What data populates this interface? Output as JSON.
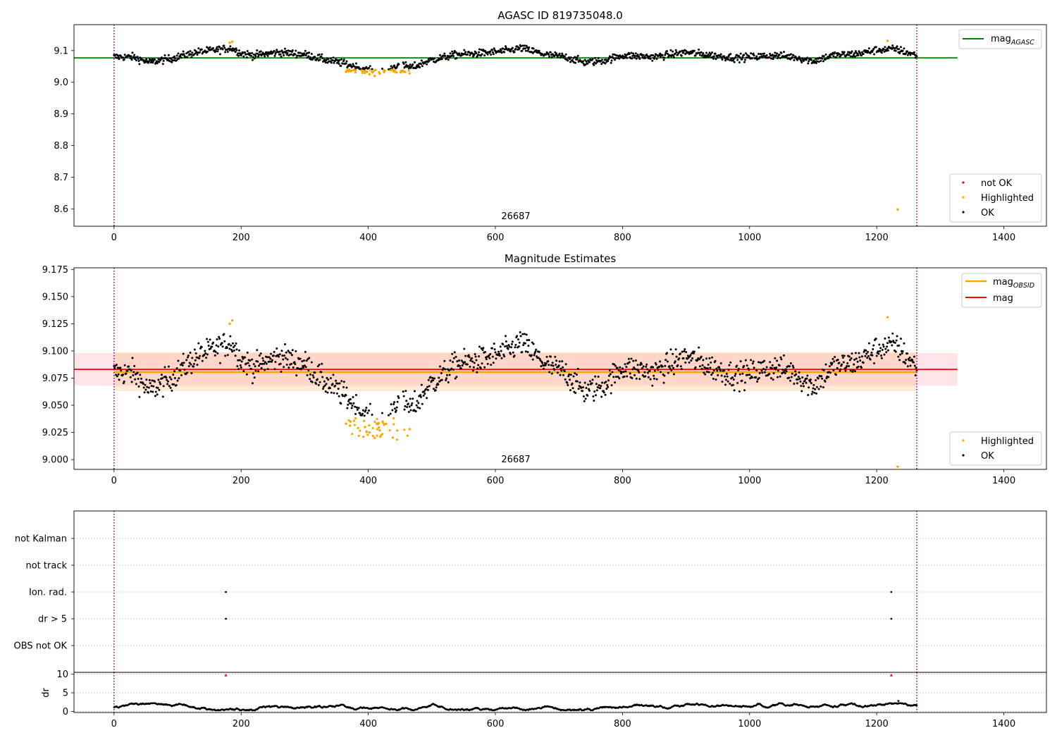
{
  "chart_data": [
    {
      "type": "scatter",
      "title": "AGASC ID 819735048.0",
      "xlim": [
        -63,
        1467
      ],
      "ylim": [
        8.545,
        9.182
      ],
      "xticks": [
        0,
        200,
        400,
        600,
        800,
        1000,
        1200,
        1400
      ],
      "yticks": [
        8.6,
        8.7,
        8.8,
        8.9,
        9.0,
        9.1
      ],
      "vlines": [
        0,
        1263
      ],
      "annotation": {
        "text": "26687",
        "x": 631,
        "y": 8.57
      },
      "lines": [
        {
          "name": "mag_AGASC",
          "legend_text": "mag",
          "legend_sub": "AGASC",
          "y": 9.077,
          "x": [
            -63,
            1327
          ],
          "color": "#008000"
        }
      ],
      "legend_top": [
        "mag_AGASC"
      ],
      "legend_bottom": [
        {
          "label": "not OK",
          "color": "#ff0000"
        },
        {
          "label": "Highlighted",
          "color": "#ffa500"
        },
        {
          "label": "OK",
          "color": "#000000"
        }
      ],
      "series": [
        {
          "name": "OK",
          "color": "#000000",
          "note": "about 1260 per-frame estimates following the baseline curve below"
        },
        {
          "name": "Highlighted",
          "color": "#ffa500",
          "points": [
            [
              182,
              9.125
            ],
            [
              186,
              9.128
            ],
            [
              365,
              9.033
            ],
            [
              372,
              9.035
            ],
            [
              380,
              9.038
            ],
            [
              395,
              9.03
            ],
            [
              402,
              9.025
            ],
            [
              410,
              9.02
            ],
            [
              418,
              9.027
            ],
            [
              425,
              9.032
            ],
            [
              440,
              9.038
            ],
            [
              465,
              9.028
            ],
            [
              1217,
              9.131
            ],
            [
              1233,
              8.598
            ]
          ]
        },
        {
          "name": "not OK",
          "color": "#ff0000",
          "points": []
        }
      ],
      "baseline": [
        [
          0,
          9.08
        ],
        [
          30,
          9.08
        ],
        [
          55,
          9.063
        ],
        [
          90,
          9.075
        ],
        [
          130,
          9.095
        ],
        [
          160,
          9.102
        ],
        [
          185,
          9.108
        ],
        [
          200,
          9.092
        ],
        [
          220,
          9.085
        ],
        [
          260,
          9.095
        ],
        [
          300,
          9.088
        ],
        [
          330,
          9.072
        ],
        [
          365,
          9.058
        ],
        [
          395,
          9.04
        ],
        [
          415,
          9.03
        ],
        [
          430,
          9.035
        ],
        [
          445,
          9.055
        ],
        [
          470,
          9.047
        ],
        [
          495,
          9.068
        ],
        [
          540,
          9.088
        ],
        [
          580,
          9.092
        ],
        [
          620,
          9.1
        ],
        [
          640,
          9.108
        ],
        [
          680,
          9.087
        ],
        [
          710,
          9.08
        ],
        [
          740,
          9.063
        ],
        [
          770,
          9.068
        ],
        [
          800,
          9.085
        ],
        [
          850,
          9.08
        ],
        [
          900,
          9.095
        ],
        [
          940,
          9.085
        ],
        [
          980,
          9.077
        ],
        [
          1040,
          9.085
        ],
        [
          1070,
          9.08
        ],
        [
          1100,
          9.067
        ],
        [
          1130,
          9.085
        ],
        [
          1170,
          9.09
        ],
        [
          1200,
          9.102
        ],
        [
          1230,
          9.105
        ],
        [
          1263,
          9.085
        ]
      ]
    },
    {
      "type": "scatter",
      "title": "Magnitude Estimates",
      "xlim": [
        -63,
        1467
      ],
      "ylim": [
        8.991,
        9.1765
      ],
      "xticks": [
        0,
        200,
        400,
        600,
        800,
        1000,
        1200,
        1400
      ],
      "yticks": [
        9.0,
        9.025,
        9.05,
        9.075,
        9.1,
        9.125,
        9.15,
        9.175
      ],
      "vlines": [
        0,
        1263
      ],
      "annotation": {
        "text": "26687",
        "x": 631,
        "y": 8.9985
      },
      "lines": [
        {
          "name": "mag_OBSID",
          "legend_text": "mag",
          "legend_sub": "OBSID",
          "y": 9.0805,
          "x": [
            0,
            1263
          ],
          "color": "#ffa500"
        },
        {
          "name": "mag",
          "legend_text": "mag",
          "legend_sub": "",
          "y": 9.083,
          "x": [
            -63,
            1327
          ],
          "color": "#ff0000"
        }
      ],
      "bands": [
        {
          "name": "mag band",
          "x": [
            -63,
            1327
          ],
          "y": [
            9.068,
            9.098
          ],
          "color": "#ff6b85",
          "opacity": 0.18
        },
        {
          "name": "mag_OBSID band",
          "x": [
            0,
            1263
          ],
          "y": [
            9.063,
            9.099
          ],
          "color": "#ffa64d",
          "opacity": 0.22
        }
      ],
      "legend_top": [
        "mag_OBSID",
        "mag"
      ],
      "legend_bottom": [
        {
          "label": "Highlighted",
          "color": "#ffa500"
        },
        {
          "label": "OK",
          "color": "#000000"
        }
      ],
      "series": [
        {
          "name": "OK",
          "color": "#000000",
          "note": "same estimates as the top panel on a zoomed axis"
        },
        {
          "name": "Highlighted",
          "color": "#ffa500",
          "points": [
            [
              182,
              9.125
            ],
            [
              186,
              9.128
            ],
            [
              365,
              9.033
            ],
            [
              372,
              9.035
            ],
            [
              380,
              9.038
            ],
            [
              395,
              9.03
            ],
            [
              402,
              9.025
            ],
            [
              410,
              9.02
            ],
            [
              418,
              9.027
            ],
            [
              425,
              9.032
            ],
            [
              440,
              9.038
            ],
            [
              465,
              9.028
            ],
            [
              1217,
              9.131
            ],
            [
              1233,
              8.993
            ]
          ]
        }
      ]
    },
    {
      "type": "scatter",
      "title": "",
      "xlim": [
        -63,
        1467
      ],
      "categories": [
        "not Kalman",
        "not track",
        "Ion. rad.",
        "dr > 5",
        "OBS not OK"
      ],
      "category_points": [
        {
          "category": "Ion. rad.",
          "x": [
            176,
            1223
          ]
        },
        {
          "category": "dr > 5",
          "x": [
            176,
            1223
          ]
        }
      ],
      "vlines": [
        0,
        1263
      ]
    },
    {
      "type": "scatter",
      "title": "",
      "xlabel": "",
      "ylabel": "dr",
      "xlim": [
        -63,
        1467
      ],
      "ylim": [
        -0.3,
        10.5
      ],
      "xticks": [
        0,
        200,
        400,
        600,
        800,
        1000,
        1200,
        1400
      ],
      "yticks": [
        0,
        5,
        10
      ],
      "vlines": [
        0,
        1263
      ],
      "series": [
        {
          "name": "dr",
          "color": "#000000",
          "note": "about 1260 points, mostly between 0.3 and 2.2"
        },
        {
          "name": "dr > 5",
          "color": "#ff0000",
          "points": [
            [
              176,
              9.8
            ],
            [
              1223,
              9.8
            ]
          ]
        }
      ],
      "extra_points": [
        [
          1234,
          2.8
        ]
      ]
    }
  ]
}
